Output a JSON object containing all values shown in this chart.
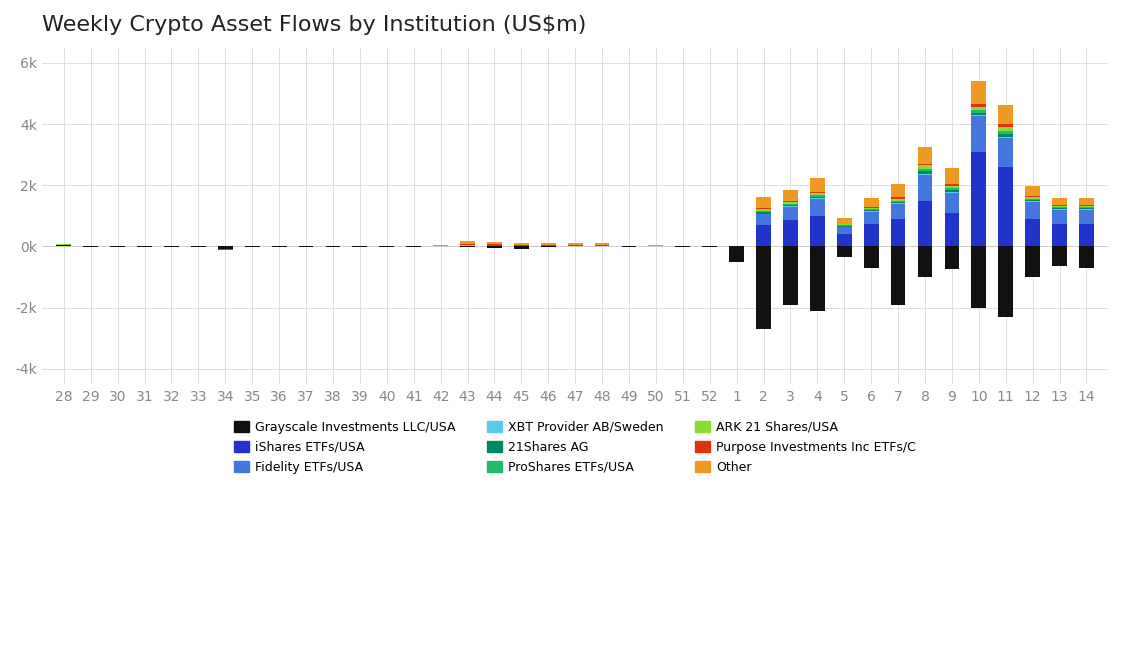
{
  "title": "Weekly Crypto Asset Flows by Institution (US$m)",
  "x_labels": [
    "28",
    "29",
    "30",
    "31",
    "32",
    "33",
    "34",
    "35",
    "36",
    "37",
    "38",
    "39",
    "40",
    "41",
    "42",
    "43",
    "44",
    "45",
    "46",
    "47",
    "48",
    "49",
    "50",
    "51",
    "52",
    "1",
    "2",
    "3",
    "4",
    "5",
    "6",
    "7",
    "8",
    "9",
    "10",
    "11",
    "12",
    "13",
    "14"
  ],
  "ylim": [
    -4500,
    6500
  ],
  "yticks": [
    -4000,
    -2000,
    0,
    2000,
    4000,
    6000
  ],
  "ytick_labels": [
    "-4k",
    "-2k",
    "0k",
    "2k",
    "4k",
    "6k"
  ],
  "series": {
    "Grayscale Investments LLC/USA": {
      "color": "#111111",
      "values": [
        50,
        -10,
        -15,
        -10,
        -30,
        -20,
        -80,
        -5,
        -5,
        -5,
        -5,
        -5,
        -5,
        -5,
        0,
        -5,
        -40,
        -100,
        -10,
        0,
        10,
        -5,
        0,
        -5,
        -5,
        -500,
        -2700,
        -1900,
        -2100,
        -350,
        -700,
        -1900,
        -1000,
        -750,
        -2000,
        -2300,
        -1000,
        -650,
        -700
      ]
    },
    "iShares ETFs/USA": {
      "color": "#2233cc",
      "values": [
        0,
        0,
        0,
        0,
        0,
        0,
        0,
        0,
        0,
        0,
        0,
        0,
        0,
        0,
        0,
        0,
        0,
        0,
        0,
        0,
        0,
        0,
        0,
        0,
        0,
        0,
        700,
        850,
        1000,
        400,
        750,
        900,
        1500,
        1100,
        3100,
        2600,
        900,
        750,
        750
      ]
    },
    "Fidelity ETFs/USA": {
      "color": "#4477dd",
      "values": [
        0,
        0,
        0,
        0,
        0,
        0,
        0,
        0,
        0,
        0,
        0,
        0,
        0,
        0,
        0,
        0,
        0,
        0,
        0,
        0,
        0,
        0,
        0,
        0,
        0,
        0,
        350,
        450,
        550,
        220,
        380,
        480,
        850,
        650,
        1150,
        950,
        550,
        450,
        450
      ]
    },
    "XBT Provider AB/Sweden": {
      "color": "#55ccee",
      "values": [
        0,
        0,
        0,
        0,
        0,
        0,
        0,
        0,
        0,
        0,
        0,
        0,
        0,
        5,
        5,
        5,
        5,
        5,
        5,
        5,
        5,
        5,
        5,
        5,
        5,
        10,
        25,
        25,
        30,
        15,
        20,
        25,
        35,
        30,
        35,
        35,
        20,
        20,
        20
      ]
    },
    "21Shares AG": {
      "color": "#008866",
      "values": [
        5,
        0,
        0,
        0,
        0,
        0,
        0,
        0,
        0,
        0,
        0,
        0,
        0,
        0,
        5,
        10,
        10,
        5,
        5,
        5,
        5,
        5,
        5,
        5,
        5,
        15,
        60,
        40,
        50,
        30,
        35,
        55,
        90,
        60,
        90,
        90,
        45,
        35,
        30
      ]
    },
    "ProShares ETFs/USA": {
      "color": "#22bb66",
      "values": [
        0,
        0,
        0,
        0,
        0,
        0,
        0,
        0,
        0,
        0,
        0,
        0,
        0,
        0,
        0,
        0,
        0,
        0,
        0,
        0,
        0,
        0,
        0,
        0,
        0,
        0,
        40,
        35,
        45,
        20,
        30,
        35,
        65,
        55,
        85,
        95,
        42,
        32,
        30
      ]
    },
    "ARK 21 Shares/USA": {
      "color": "#88dd33",
      "values": [
        20,
        0,
        0,
        0,
        0,
        0,
        0,
        0,
        0,
        0,
        0,
        0,
        0,
        0,
        0,
        20,
        10,
        5,
        5,
        5,
        10,
        5,
        5,
        5,
        5,
        5,
        55,
        55,
        65,
        40,
        55,
        65,
        110,
        85,
        85,
        140,
        55,
        45,
        45
      ]
    },
    "Purpose Investments Inc ETFs/C": {
      "color": "#dd3311",
      "values": [
        0,
        0,
        0,
        0,
        0,
        0,
        -30,
        0,
        0,
        0,
        0,
        0,
        0,
        0,
        0,
        30,
        40,
        30,
        30,
        30,
        25,
        0,
        10,
        0,
        0,
        0,
        30,
        30,
        50,
        20,
        30,
        50,
        60,
        50,
        100,
        80,
        40,
        30,
        30
      ]
    },
    "Other": {
      "color": "#ee9922",
      "values": [
        0,
        0,
        0,
        0,
        0,
        0,
        0,
        0,
        0,
        0,
        0,
        0,
        0,
        0,
        30,
        100,
        80,
        60,
        70,
        80,
        60,
        0,
        10,
        0,
        0,
        0,
        350,
        350,
        450,
        200,
        270,
        430,
        550,
        550,
        750,
        650,
        330,
        220,
        220
      ]
    }
  },
  "background_color": "#ffffff",
  "grid_color": "#e0e0e0",
  "title_fontsize": 16,
  "tick_fontsize": 10,
  "legend_fontsize": 9,
  "bar_width": 0.55
}
